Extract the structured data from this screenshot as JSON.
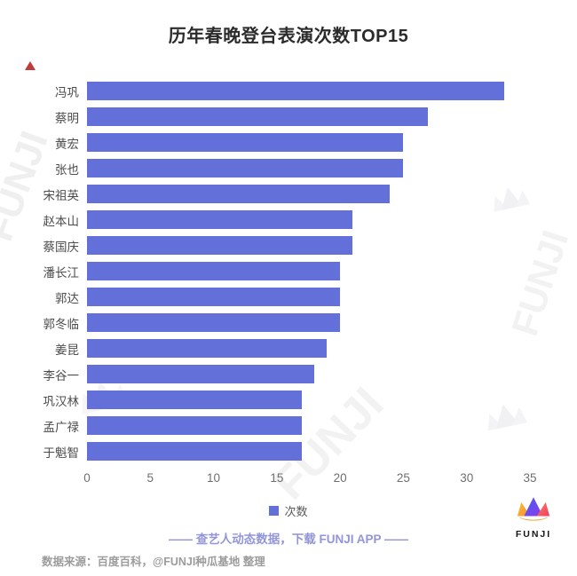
{
  "title": "历年春晚登台表演次数TOP15",
  "chart_data": {
    "type": "bar",
    "orientation": "horizontal",
    "title": "历年春晚登台表演次数TOP15",
    "categories": [
      "冯巩",
      "蔡明",
      "黄宏",
      "张也",
      "宋祖英",
      "赵本山",
      "蔡国庆",
      "潘长江",
      "郭达",
      "郭冬临",
      "姜昆",
      "李谷一",
      "巩汉林",
      "孟广禄",
      "于魁智"
    ],
    "values": [
      33,
      27,
      25,
      25,
      24,
      21,
      21,
      20,
      20,
      20,
      19,
      18,
      17,
      17,
      17
    ],
    "xlabel": "",
    "ylabel": "",
    "xlim": [
      0,
      35
    ],
    "x_ticks": [
      0,
      5,
      10,
      15,
      20,
      25,
      30,
      35
    ],
    "grid": false,
    "legend": {
      "label": "次数",
      "position": "bottom"
    },
    "bar_color": "#6470DA"
  },
  "footer": {
    "promo": "—— 查艺人动态数据，下载 FUNJI APP ——",
    "source": "数据来源：百度百科，@FUNJI种瓜基地 整理"
  },
  "logo": {
    "text": "FUNJI"
  },
  "watermark": {
    "text": "FUNJI"
  },
  "colors": {
    "bar": "#6470DA",
    "legend_square": "#6470DA",
    "promo_text": "#9295da",
    "marker_red": "#c23b3b"
  }
}
